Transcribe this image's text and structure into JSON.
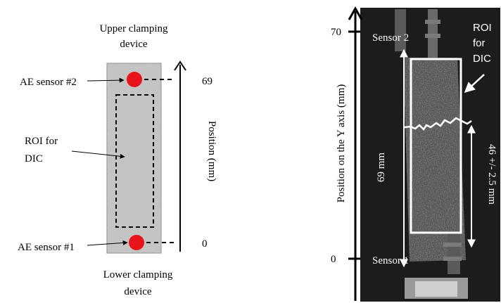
{
  "left_schematic": {
    "upper_clamp_line1": "Upper clamping",
    "upper_clamp_line2": "device",
    "lower_clamp_line1": "Lower clamping",
    "lower_clamp_line2": "device",
    "sensor2_label": "AE sensor #2",
    "sensor1_label": "AE sensor #1",
    "roi_line1": "ROI for",
    "roi_line2": "DIC",
    "tick_top": "69",
    "tick_bottom": "0",
    "axis_label": "Position (mm)"
  },
  "right_photo": {
    "axis_label": "Position on the Y axis (mm)",
    "tick_top": "70",
    "tick_bottom": "0",
    "sensor2_label": "Sensor 2",
    "sensor1_label": "Sensor 1",
    "span_label": "69 mm",
    "crack_label": "46 +/- 2.5 mm",
    "roi_line1": "ROI",
    "roi_line2": "for",
    "roi_line3": "DIC"
  },
  "colors": {
    "sensor_dot": "#e8141c",
    "photo_bg": "#151515",
    "specimen": "#595959"
  }
}
